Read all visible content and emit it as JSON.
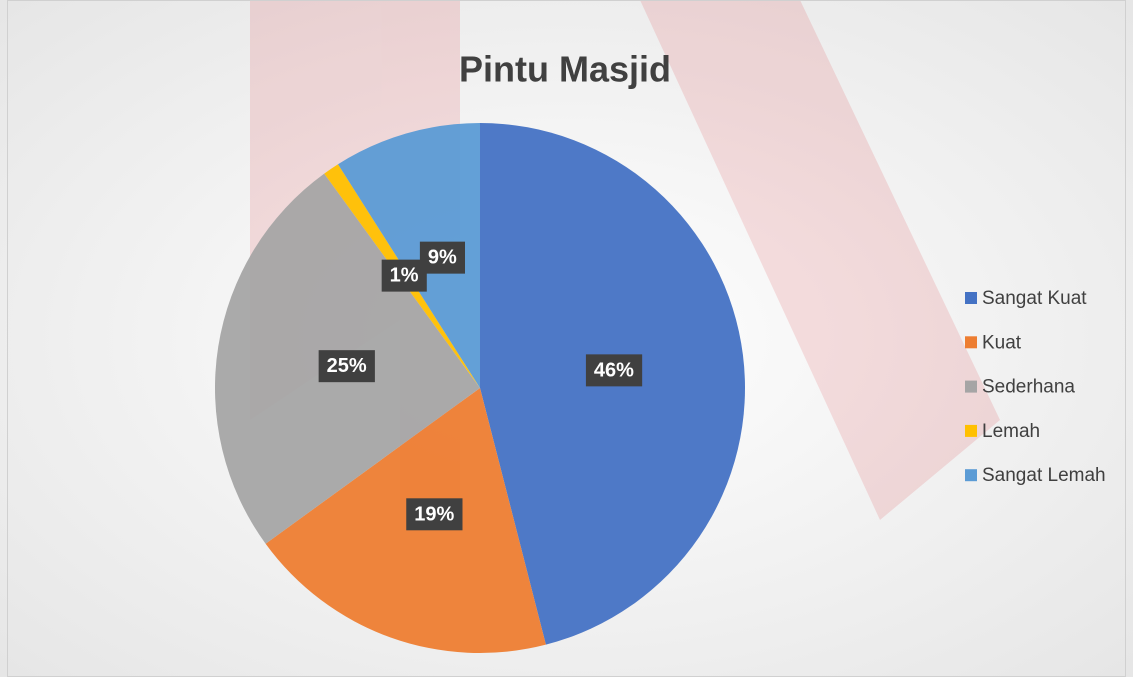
{
  "chart_data": {
    "type": "pie",
    "title": "Pintu Masjid",
    "categories": [
      "Sangat Kuat",
      "Kuat",
      "Sederhana",
      "Lemah",
      "Sangat Lemah"
    ],
    "values": [
      46,
      19,
      25,
      1,
      9
    ],
    "value_labels": [
      "46%",
      "19%",
      "25%",
      "1%",
      "9%"
    ],
    "colors": [
      "#4472c4",
      "#ed7d31",
      "#a5a5a5",
      "#ffc000",
      "#5b9bd5"
    ],
    "legend": "right"
  }
}
